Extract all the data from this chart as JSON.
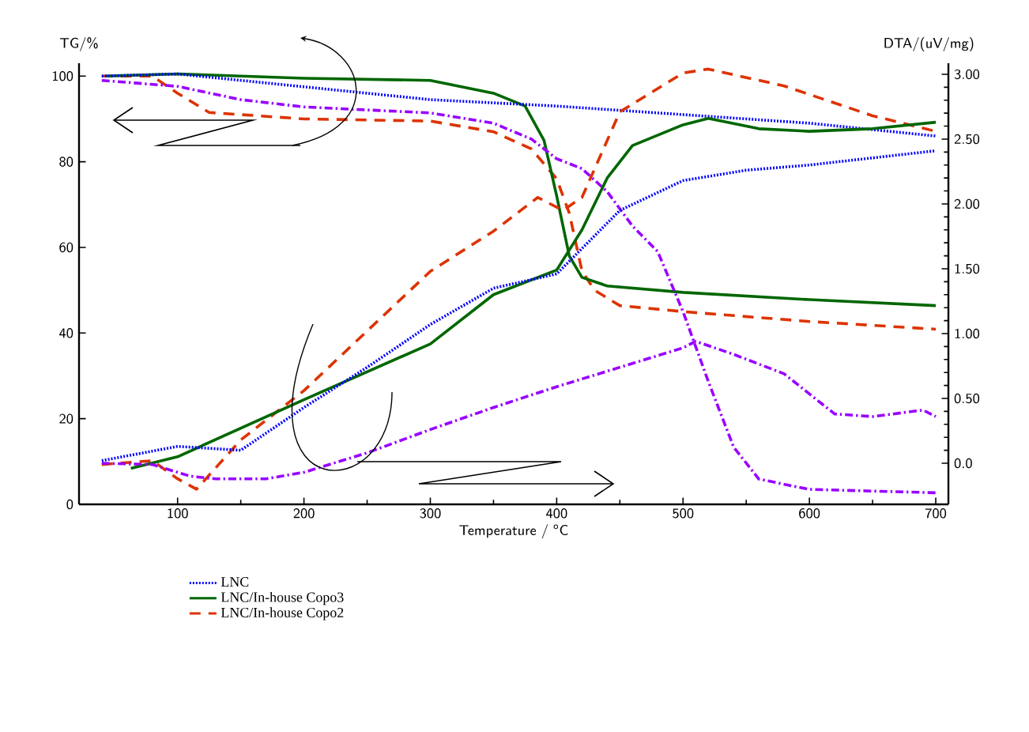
{
  "chart_data": {
    "type": "line",
    "xlabel": "Temperature / $^{o}$C",
    "ylabel": "TG/%",
    "y2label": "DTA/(uV/mg)",
    "xlim": [
      22,
      710
    ],
    "xticks": [
      100,
      200,
      300,
      400,
      500,
      600,
      700
    ],
    "ylim": [
      0,
      103
    ],
    "yticks": [
      0,
      20,
      40,
      60,
      80,
      100
    ],
    "y2lim": [
      -0.317,
      3.085
    ],
    "y2ticks": [
      {
        "value": 0,
        "label": "0.0"
      },
      {
        "value": 0.5,
        "label": "0.50"
      },
      {
        "value": 1,
        "label": "1.00"
      },
      {
        "value": 1.5,
        "label": "1.50"
      },
      {
        "value": 2,
        "label": "2.00"
      },
      {
        "value": 2.5,
        "label": "2.50"
      },
      {
        "value": 3,
        "label": "3.00"
      }
    ],
    "legend": "bottom",
    "series": [
      {
        "color": "#9900ff",
        "line_style": "dashdot",
        "x": [
          40,
          100,
          150,
          200,
          300,
          350,
          380,
          400,
          420,
          440,
          460,
          480,
          500,
          520,
          540,
          560,
          600,
          700
        ],
        "values": [
          99,
          97.6,
          94.5,
          92.8,
          91.4,
          89,
          85.3,
          80.7,
          78.4,
          73,
          65,
          59,
          45,
          28.7,
          13.4,
          5.9,
          3.5,
          2.7
        ]
      },
      {
        "name": "LNC",
        "color": "#0000ff",
        "line_style": "dotted",
        "x": [
          40,
          100,
          200,
          300,
          400,
          500,
          600,
          700
        ],
        "values": [
          100,
          100.5,
          97.5,
          94.5,
          93,
          91,
          89,
          86
        ]
      },
      {
        "name": "LNC/In-house Copo3",
        "color": "#006600",
        "line_style": "solid",
        "x": [
          43,
          100,
          200,
          300,
          350,
          375,
          390,
          400,
          410,
          420,
          440,
          500,
          600,
          700
        ],
        "values": [
          100,
          100.5,
          99.5,
          99,
          96,
          93,
          85,
          72,
          58,
          53,
          51,
          49.5,
          47.8,
          46.4
        ]
      },
      {
        "name": "LNC/In-house Copo2",
        "color": "#dd3300",
        "line_style": "dashed",
        "x": [
          40,
          80,
          100,
          125,
          200,
          300,
          350,
          380,
          400,
          410,
          420,
          430,
          450,
          500,
          600,
          700
        ],
        "values": [
          100,
          100,
          96,
          91.5,
          90,
          89.5,
          87,
          83,
          76,
          68,
          54.5,
          50,
          46.4,
          45,
          42.7,
          40.9
        ]
      },
      {
        "axis": "y2",
        "color": "#9900ff",
        "line_style": "dashdot",
        "x": [
          40,
          80,
          110,
          130,
          170,
          200,
          250,
          300,
          350,
          400,
          450,
          500,
          510,
          540,
          580,
          620,
          650,
          690,
          700
        ],
        "values": [
          0.0,
          -0.01,
          -0.1,
          -0.12,
          -0.12,
          -0.07,
          0.08,
          0.26,
          0.43,
          0.59,
          0.74,
          0.89,
          0.94,
          0.84,
          0.69,
          0.38,
          0.36,
          0.41,
          0.36
        ]
      },
      {
        "axis": "y2",
        "color": "#0000ff",
        "line_style": "dotted",
        "x": [
          40,
          100,
          150,
          200,
          250,
          300,
          350,
          400,
          450,
          500,
          550,
          600,
          700
        ],
        "values": [
          0.02,
          0.13,
          0.1,
          0.43,
          0.74,
          1.07,
          1.35,
          1.46,
          1.95,
          2.18,
          2.26,
          2.3,
          2.41
        ]
      },
      {
        "axis": "y2",
        "color": "#006600",
        "line_style": "solid",
        "x": [
          63,
          100,
          200,
          300,
          350,
          400,
          420,
          440,
          460,
          500,
          520,
          560,
          600,
          650,
          700
        ],
        "values": [
          -0.04,
          0.05,
          0.49,
          0.92,
          1.3,
          1.49,
          1.8,
          2.2,
          2.45,
          2.61,
          2.66,
          2.58,
          2.56,
          2.58,
          2.63
        ]
      },
      {
        "axis": "y2",
        "color": "#dd3300",
        "line_style": "dashed",
        "x": [
          40,
          80,
          100,
          115,
          150,
          200,
          250,
          300,
          350,
          385,
          405,
          420,
          450,
          500,
          520,
          580,
          650,
          700
        ],
        "values": [
          -0.01,
          0.02,
          -0.12,
          -0.2,
          0.18,
          0.56,
          1.02,
          1.48,
          1.79,
          2.05,
          1.95,
          2.05,
          2.71,
          3.01,
          3.04,
          2.91,
          2.68,
          2.56
        ]
      }
    ]
  }
}
